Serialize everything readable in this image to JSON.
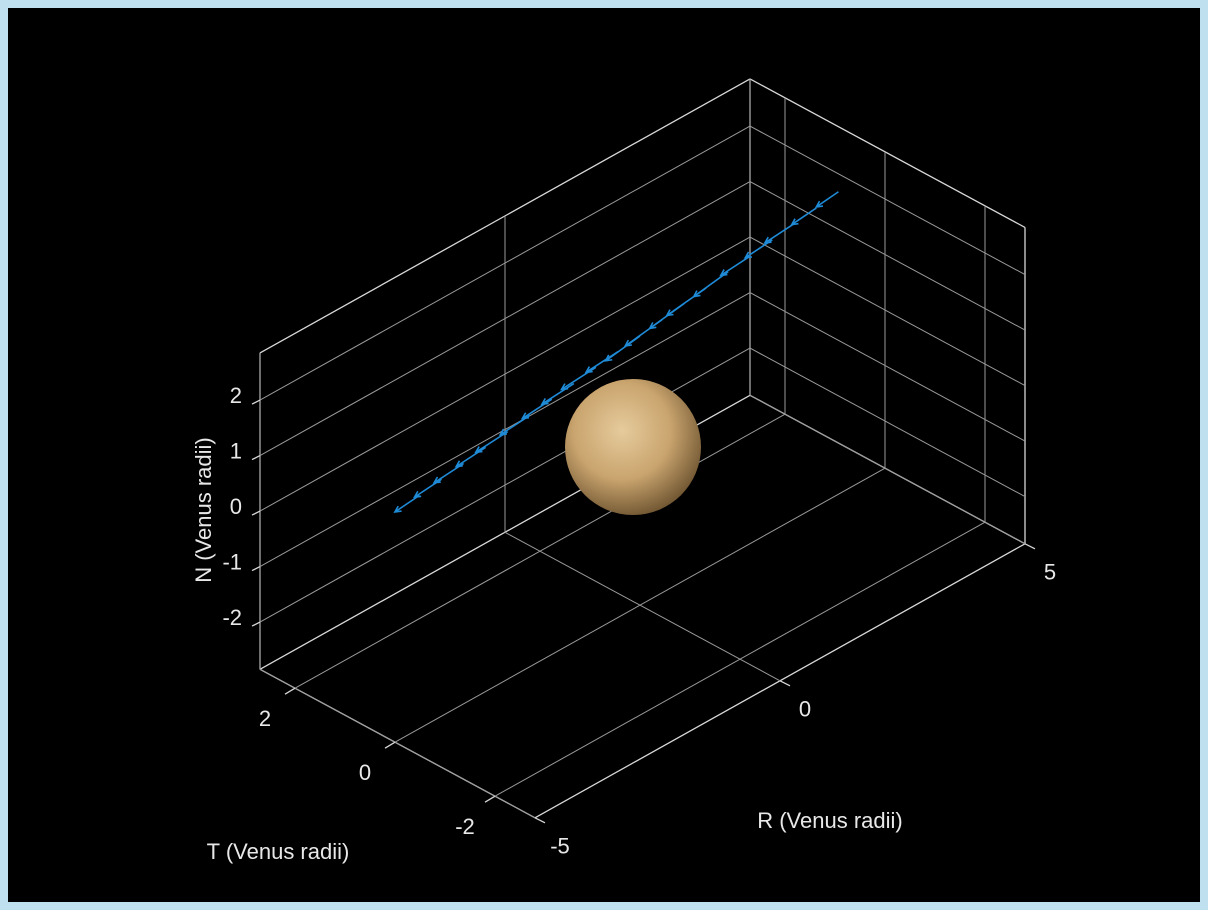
{
  "chart_data": {
    "type": "quiver3d",
    "xlabel": "R (Venus radii)",
    "ylabel": "T (Venus radii)",
    "zlabel": "N (Venus radii)",
    "xlim": [
      -5,
      5
    ],
    "ylim": [
      -2.8,
      2.7
    ],
    "zlim": [
      -2.85,
      2.85
    ],
    "xticks": [
      -5,
      0,
      5
    ],
    "yticks": [
      -2,
      0,
      2
    ],
    "zticks": [
      -2,
      -1,
      0,
      1,
      2
    ],
    "grid": true,
    "color": "#1f8ad6",
    "x": [
      -4.5,
      -4.05,
      -3.6,
      -3.15,
      -2.7,
      -2.25,
      -1.8,
      -1.35,
      -0.9,
      -0.45,
      0,
      0.45,
      0.9,
      1.35,
      1.8,
      2.25,
      2.7,
      3.15,
      3.6,
      4.05
    ],
    "y": [
      0,
      0,
      0,
      0,
      0,
      0,
      0,
      0,
      0,
      0,
      0,
      0,
      0,
      0,
      0,
      0,
      0,
      0,
      0,
      0
    ],
    "z": [
      1.35,
      1.42,
      1.48,
      1.55,
      1.61,
      1.68,
      1.75,
      1.81,
      1.88,
      1.94,
      2.0,
      2.07,
      2.14,
      2.2,
      2.27,
      2.33,
      2.4,
      2.47,
      2.53,
      2.6
    ],
    "u": [
      -0.4,
      -0.45,
      -0.5,
      -0.5,
      -0.55,
      -0.5,
      -0.5,
      -0.55,
      -0.6,
      -0.55,
      -0.6,
      -0.65,
      -0.6,
      -0.7,
      -0.6,
      -0.5,
      -0.45,
      -0.5,
      -0.4,
      -0.35
    ],
    "v": [
      0.1,
      0.1,
      0.1,
      0.1,
      0.1,
      0.1,
      0.1,
      0.1,
      0.1,
      0.1,
      0.1,
      0.1,
      0.1,
      0.1,
      0.1,
      0.1,
      0.1,
      0.1,
      0.1,
      0.1
    ],
    "w": [
      -0.15,
      -0.15,
      -0.15,
      -0.15,
      -0.15,
      -0.15,
      -0.15,
      -0.15,
      -0.15,
      -0.15,
      -0.2,
      -0.2,
      -0.2,
      -0.2,
      -0.2,
      -0.15,
      -0.15,
      -0.15,
      -0.15,
      -0.15
    ]
  }
}
